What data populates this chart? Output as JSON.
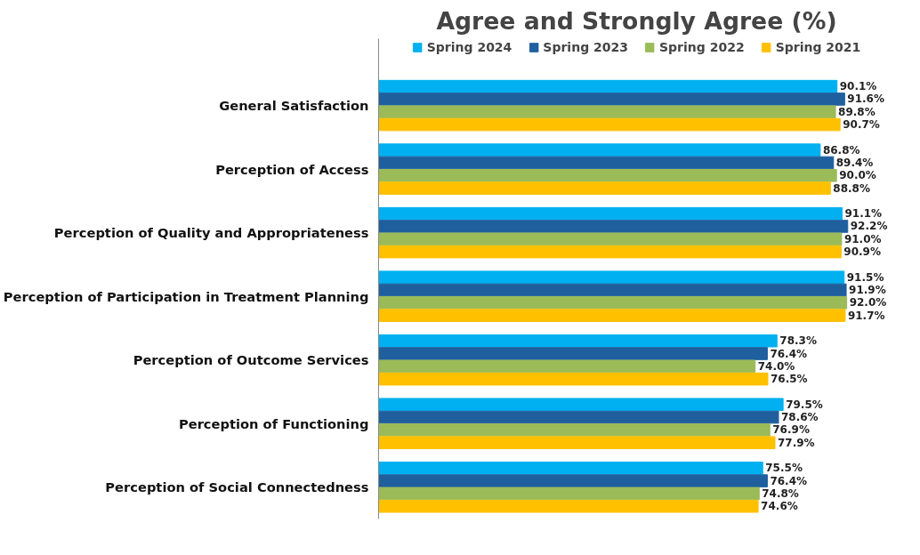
{
  "chart_data": {
    "type": "bar",
    "orientation": "horizontal",
    "title": "Agree and Strongly Agree (%)",
    "categories": [
      "General Satisfaction",
      "Perception of Access",
      "Perception of Quality and Appropriateness",
      "Perception of Participation in Treatment Planning",
      "Perception of Outcome Services",
      "Perception of Functioning",
      "Perception of Social Connectedness"
    ],
    "series": [
      {
        "name": "Spring 2024",
        "color": "#00b0f0",
        "values": [
          90.1,
          86.8,
          91.1,
          91.5,
          78.3,
          79.5,
          75.5
        ],
        "value_labels": [
          "90.1%",
          "86.8%",
          "91.1%",
          "91.5%",
          "78.3%",
          "79.5%",
          "75.5%"
        ]
      },
      {
        "name": "Spring 2023",
        "color": "#1f5f9e",
        "values": [
          91.6,
          89.4,
          92.2,
          91.9,
          76.4,
          78.6,
          76.4
        ],
        "value_labels": [
          "91.6%",
          "89.4%",
          "92.2%",
          "91.9%",
          "76.4%",
          "78.6%",
          "76.4%"
        ]
      },
      {
        "name": "Spring 2022",
        "color": "#9bbb59",
        "values": [
          89.8,
          90.0,
          91.0,
          92.0,
          74.0,
          76.9,
          74.8
        ],
        "value_labels": [
          "89.8%",
          "90.0%",
          "91.0%",
          "92.0%",
          "74.0%",
          "76.9%",
          "74.8%"
        ]
      },
      {
        "name": "Spring 2021",
        "color": "#ffc000",
        "values": [
          90.7,
          88.8,
          90.9,
          91.7,
          76.5,
          77.9,
          74.6
        ],
        "value_labels": [
          "90.7%",
          "88.8%",
          "90.9%",
          "91.7%",
          "76.5%",
          "77.9%",
          "74.6%"
        ]
      }
    ],
    "tick_labels": "y",
    "legend": "top",
    "grid": false
  }
}
